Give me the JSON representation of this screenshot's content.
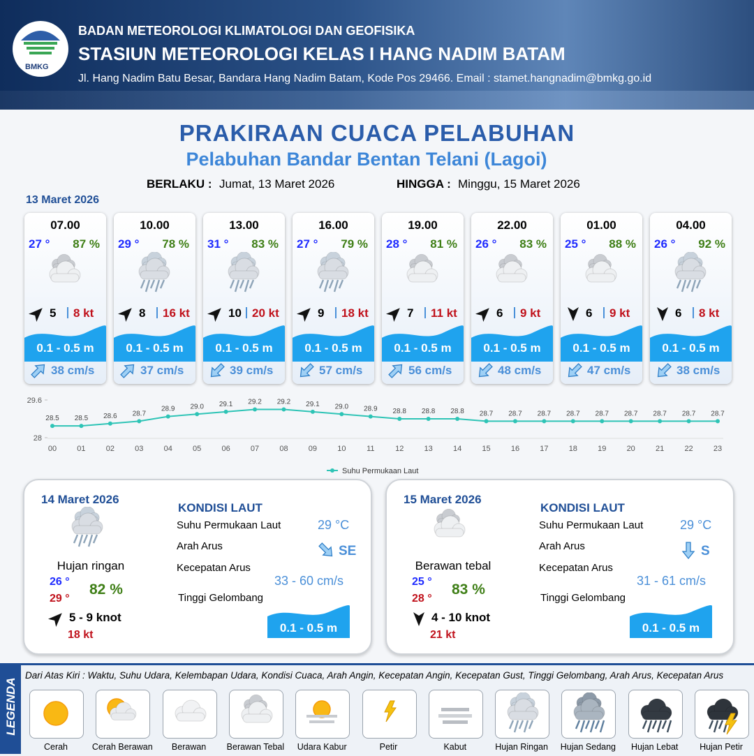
{
  "header": {
    "logo": "BMKG",
    "agency": "BADAN METEOROLOGI KLIMATOLOGI DAN GEOFISIKA",
    "station": "STASIUN METEOROLOGI KELAS I HANG NADIM BATAM",
    "address": "Jl. Hang Nadim Batu Besar, Bandara Hang Nadim Batam, Kode Pos 29466. Email : stamet.hangnadim@bmkg.go.id"
  },
  "title": "PRAKIRAAN CUACA PELABUHAN",
  "subtitle": "Pelabuhan Bandar Bentan Telani (Lagoi)",
  "validity": {
    "from_label": "BERLAKU :",
    "from": "Jumat, 13 Maret 2026",
    "to_label": "HINGGA :",
    "to": "Minggu, 15 Maret 2026"
  },
  "day1": {
    "date": "13 Maret 2026",
    "forecasts": [
      {
        "time": "07.00",
        "temperature": "27 °",
        "humidity": "87 %",
        "condition": "Berawan Tebal",
        "wind_speed": "5",
        "gust": "8 kt",
        "wave_height": "0.1 - 0.5 m",
        "current_speed": "38 cm/s"
      },
      {
        "time": "10.00",
        "temperature": "29 °",
        "humidity": "78 %",
        "condition": "Hujan Ringan",
        "wind_speed": "8",
        "gust": "16 kt",
        "wave_height": "0.1 - 0.5 m",
        "current_speed": "37 cm/s"
      },
      {
        "time": "13.00",
        "temperature": "31 °",
        "humidity": "83 %",
        "condition": "Hujan Ringan",
        "wind_speed": "10",
        "gust": "20 kt",
        "wave_height": "0.1 - 0.5 m",
        "current_speed": "39 cm/s"
      },
      {
        "time": "16.00",
        "temperature": "27 °",
        "humidity": "79 %",
        "condition": "Hujan Ringan",
        "wind_speed": "9",
        "gust": "18 kt",
        "wave_height": "0.1 - 0.5 m",
        "current_speed": "57 cm/s"
      },
      {
        "time": "19.00",
        "temperature": "28 °",
        "humidity": "81 %",
        "condition": "Berawan Tebal",
        "wind_speed": "7",
        "gust": "11 kt",
        "wave_height": "0.1 - 0.5 m",
        "current_speed": "56 cm/s"
      },
      {
        "time": "22.00",
        "temperature": "26 °",
        "humidity": "83 %",
        "condition": "Berawan Tebal",
        "wind_speed": "6",
        "gust": "9 kt",
        "wave_height": "0.1 - 0.5 m",
        "current_speed": "48 cm/s"
      },
      {
        "time": "01.00",
        "temperature": "25 °",
        "humidity": "88 %",
        "condition": "Berawan Tebal",
        "wind_speed": "6",
        "gust": "9 kt",
        "wave_height": "0.1 - 0.5 m",
        "current_speed": "47 cm/s"
      },
      {
        "time": "04.00",
        "temperature": "26 °",
        "humidity": "92 %",
        "condition": "Hujan Ringan",
        "wind_speed": "6",
        "gust": "8 kt",
        "wave_height": "0.1 - 0.5 m",
        "current_speed": "38 cm/s"
      }
    ]
  },
  "chart_data": {
    "type": "line",
    "categories": [
      "00",
      "01",
      "02",
      "03",
      "04",
      "05",
      "06",
      "07",
      "08",
      "09",
      "10",
      "11",
      "12",
      "13",
      "14",
      "15",
      "16",
      "17",
      "18",
      "19",
      "20",
      "21",
      "22",
      "23"
    ],
    "series": [
      {
        "name": "Suhu Permukaan Laut",
        "color": "#2ec4b6",
        "values": [
          28.5,
          28.5,
          28.6,
          28.7,
          28.9,
          29.0,
          29.1,
          29.2,
          29.2,
          29.1,
          29.0,
          28.9,
          28.8,
          28.8,
          28.8,
          28.7,
          28.7,
          28.7,
          28.7,
          28.7,
          28.7,
          28.7,
          28.7,
          28.7
        ],
        "value_labels": [
          "28.5",
          "28.5",
          "28.6",
          "28.7",
          "28.9",
          "29.0",
          "29.1",
          "29.2",
          "29.2",
          "29.1",
          "29.0",
          "28.9",
          "28.8",
          "28.8",
          "28.8",
          "28.7",
          "28.7",
          "28.7",
          "28.7",
          "28.7",
          "28.7",
          "28.7",
          "28.7",
          "28.7"
        ]
      }
    ],
    "ylim": [
      28,
      29.6
    ],
    "yticks": [
      28,
      29.6
    ],
    "grid": false,
    "legend": "bottom"
  },
  "days": [
    {
      "date": "14 Maret 2026",
      "condition": "Hujan ringan",
      "temp_min": "26 °",
      "temp_max": "29 °",
      "humidity": "82 %",
      "wind": "5 - 9 knot",
      "gust": "18 kt",
      "sea": {
        "heading": "KONDISI LAUT",
        "sst_label": "Suhu Permukaan Laut",
        "direction_label": "Arah Arus",
        "speed_label": "Kecepatan Arus",
        "wave_label": "Tinggi Gelombang",
        "sst": "29 °C",
        "direction": "SE",
        "speed": "33  - 60 cm/s",
        "wave": "0.1 - 0.5 m"
      }
    },
    {
      "date": "15 Maret 2026",
      "condition": "Berawan tebal",
      "temp_min": "25 °",
      "temp_max": "28 °",
      "humidity": "83 %",
      "wind": "4 - 10 knot",
      "gust": "21 kt",
      "sea": {
        "heading": "KONDISI LAUT",
        "sst_label": "Suhu Permukaan Laut",
        "direction_label": "Arah Arus",
        "speed_label": "Kecepatan Arus",
        "wave_label": "Tinggi Gelombang",
        "sst": "29 °C",
        "direction": "S",
        "speed": "31 - 61 cm/s",
        "wave": "0.1 - 0.5 m"
      }
    }
  ],
  "legend": {
    "title": "LEGENDA",
    "description": "Dari Atas Kiri : Waktu, Suhu Udara, Kelembapan Udara, Kondisi Cuaca, Arah Angin, Kecepatan Angin, Kecepatan Gust, Tinggi Gelombang, Arah Arus, Kecepatan Arus",
    "items": [
      "Cerah",
      "Cerah Berawan",
      "Berawan",
      "Berawan Tebal",
      "Udara Kabur",
      "Petir",
      "Kabut",
      "Hujan Ringan",
      "Hujan Sedang",
      "Hujan Lebat",
      "Hujan Petir"
    ]
  }
}
